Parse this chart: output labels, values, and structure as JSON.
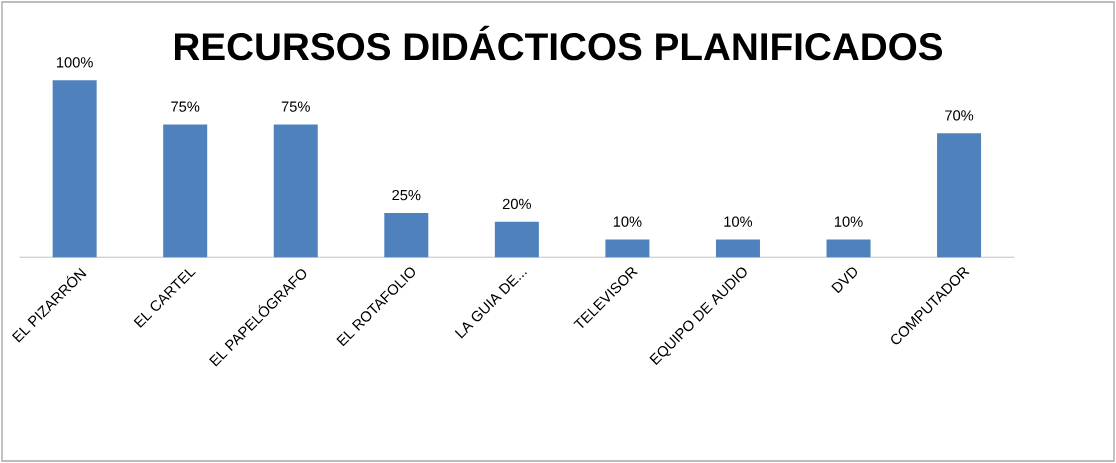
{
  "chart_data": {
    "type": "bar",
    "title": "RECURSOS DIDÁCTICOS PLANIFICADOS",
    "categories": [
      "EL PIZARRÓN",
      "EL CARTEL",
      "EL PAPELÓGRAFO",
      "EL ROTAFOLIO",
      "LA GUIA DE...",
      "TELEVISOR",
      "EQUIPO DE AUDIO",
      "DVD",
      "COMPUTADOR"
    ],
    "values": [
      100,
      75,
      75,
      25,
      20,
      10,
      10,
      10,
      70
    ],
    "value_labels": [
      "100%",
      "75%",
      "75%",
      "25%",
      "20%",
      "10%",
      "10%",
      "10%",
      "70%"
    ],
    "color": "#4f81bd"
  }
}
